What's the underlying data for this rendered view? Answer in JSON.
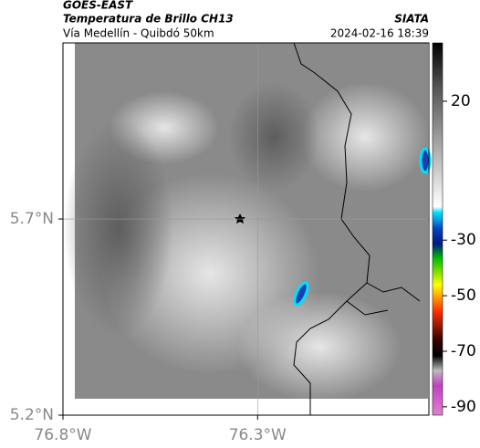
{
  "header": {
    "satellite": "GOES-EAST",
    "product": "Temperatura de Brillo CH13",
    "region": "Vía Medellín - Quibdó 50km",
    "source": "SIATA",
    "timestamp": "2024-02-16 18:39"
  },
  "map": {
    "lonlim": [
      -76.8,
      -75.86
    ],
    "latlim": [
      5.2,
      6.149
    ],
    "lonticks": [
      {
        "value": -76.8,
        "label": "76.8°W"
      },
      {
        "value": -76.3,
        "label": "76.3°W"
      }
    ],
    "latticks": [
      {
        "value": 5.7,
        "label": "5.7°N"
      },
      {
        "value": 5.2,
        "label": "5.2°N"
      }
    ],
    "grid": true
  },
  "colorbar": {
    "lim": [
      -93,
      41
    ],
    "ticks": [
      20,
      -30,
      -50,
      -70,
      -90
    ]
  }
}
